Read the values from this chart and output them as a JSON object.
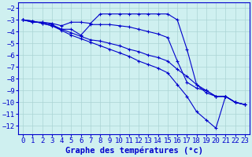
{
  "title": "Graphe des températures (°c)",
  "background_color": "#cff0f0",
  "grid_color": "#aad4d4",
  "line_color": "#0000cc",
  "xlim": [
    -0.5,
    23.5
  ],
  "ylim": [
    -12.7,
    -1.5
  ],
  "xlabel_fontsize": 7.5,
  "tick_fontsize": 6.5,
  "xticks": [
    0,
    1,
    2,
    3,
    4,
    5,
    6,
    7,
    8,
    9,
    10,
    11,
    12,
    13,
    14,
    15,
    16,
    17,
    18,
    19,
    20,
    21,
    22,
    23
  ],
  "yticks": [
    -12,
    -11,
    -10,
    -9,
    -8,
    -7,
    -6,
    -5,
    -4,
    -3,
    -2
  ],
  "series": [
    {
      "x": [
        0,
        1,
        2,
        3,
        4,
        5,
        6,
        7,
        8,
        9,
        10,
        11,
        12,
        13,
        14,
        15,
        16,
        17,
        18,
        19,
        20,
        21,
        22,
        23
      ],
      "y": [
        -3.0,
        -3.2,
        -3.2,
        -3.3,
        -3.5,
        -3.2,
        -3.2,
        -3.3,
        -2.5,
        -2.5,
        -2.5,
        -2.5,
        -2.5,
        -2.5,
        -2.5,
        -2.5,
        -3.0,
        -5.5,
        -8.5,
        -9.2,
        -9.5,
        -9.5,
        -10.0,
        -10.2
      ]
    },
    {
      "x": [
        0,
        1,
        2,
        3,
        4,
        5,
        6,
        7,
        8,
        9,
        10,
        11,
        12,
        13,
        14,
        15,
        16,
        17,
        18,
        19,
        20,
        21,
        22,
        23
      ],
      "y": [
        -3.0,
        -3.2,
        -3.2,
        -3.4,
        -3.8,
        -3.8,
        -4.3,
        -3.4,
        -3.4,
        -3.4,
        -3.5,
        -3.6,
        -3.8,
        -4.0,
        -4.2,
        -4.5,
        -6.5,
        -8.3,
        -8.8,
        -9.0,
        -9.5,
        -9.5,
        -10.0,
        -10.2
      ]
    },
    {
      "x": [
        0,
        1,
        2,
        3,
        4,
        5,
        6,
        7,
        8,
        9,
        10,
        11,
        12,
        13,
        14,
        15,
        16,
        17,
        18,
        19,
        20,
        21,
        22,
        23
      ],
      "y": [
        -3.0,
        -3.1,
        -3.3,
        -3.5,
        -3.8,
        -4.1,
        -4.4,
        -4.7,
        -4.8,
        -5.0,
        -5.2,
        -5.5,
        -5.7,
        -6.0,
        -6.2,
        -6.5,
        -7.2,
        -7.8,
        -8.5,
        -9.0,
        -9.5,
        -9.5,
        -10.0,
        -10.2
      ]
    },
    {
      "x": [
        0,
        1,
        2,
        3,
        4,
        5,
        6,
        7,
        8,
        9,
        10,
        11,
        12,
        13,
        14,
        15,
        16,
        17,
        18,
        19,
        20,
        21,
        22,
        23
      ],
      "y": [
        -3.0,
        -3.1,
        -3.3,
        -3.5,
        -3.9,
        -4.3,
        -4.6,
        -4.9,
        -5.2,
        -5.5,
        -5.8,
        -6.1,
        -6.5,
        -6.8,
        -7.1,
        -7.5,
        -8.5,
        -9.5,
        -10.8,
        -11.5,
        -12.2,
        -9.5,
        -10.0,
        -10.2
      ]
    }
  ]
}
